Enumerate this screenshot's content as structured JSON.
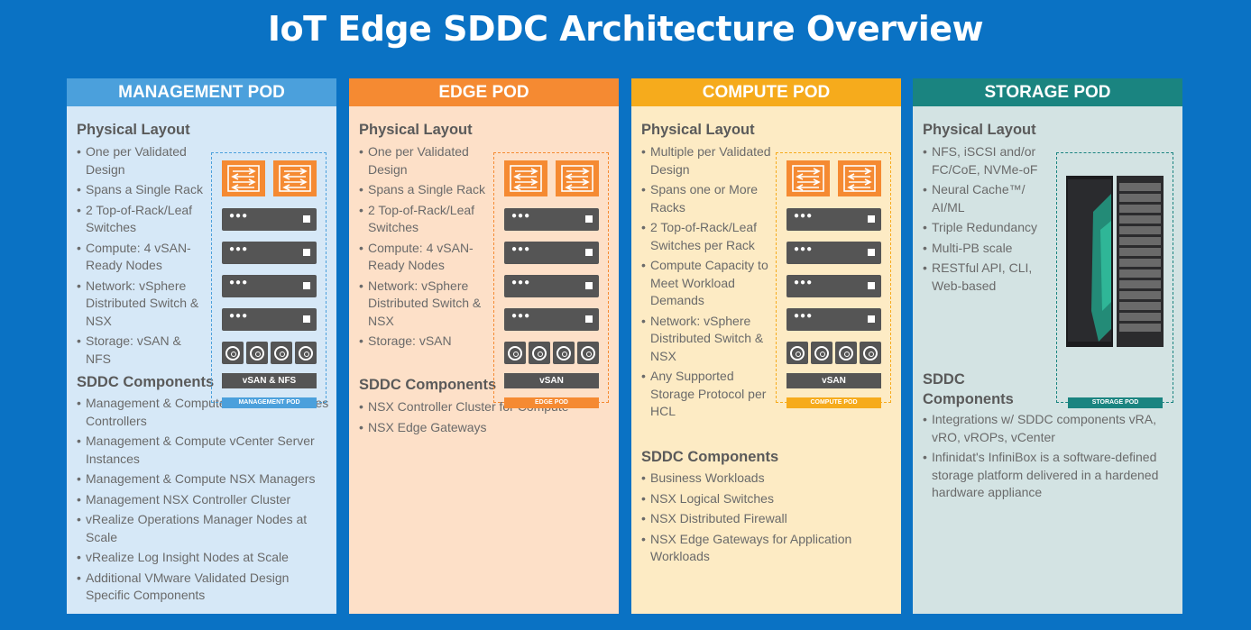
{
  "title": "IoT Edge SDDC Architecture Overview",
  "colors": {
    "background": "#0a72c4",
    "management": "#4ba0dc",
    "edge": "#f58a32",
    "compute": "#f6ab1c",
    "storage": "#1a8480"
  },
  "management": {
    "header": "MANAGEMENT POD",
    "physical_title": "Physical Layout",
    "physical": [
      "One per Validated Design",
      "Spans a Single Rack",
      "2 Top-of-Rack/Leaf Switches",
      "Compute: 4 vSAN-Ready Nodes",
      "Network: vSphere Distributed Switch & NSX",
      "Storage: vSAN & NFS"
    ],
    "sddc_title": "SDDC Components",
    "sddc": [
      "Management & Compute Platform Services Controllers",
      "Management & Compute vCenter Server Instances",
      "Management & Compute NSX Managers",
      "Management NSX Controller Cluster",
      "vRealize Operations Manager Nodes at Scale",
      "vRealize Log Insight Nodes at Scale",
      "Additional VMware Validated Design Specific Components"
    ],
    "rack_storage": "vSAN & NFS",
    "rack_label": "MANAGEMENT POD"
  },
  "edge": {
    "header": "EDGE POD",
    "physical_title": "Physical Layout",
    "physical": [
      "One per Validated Design",
      "Spans a Single Rack",
      "2 Top-of-Rack/Leaf Switches",
      "Compute: 4 vSAN-Ready Nodes",
      "Network: vSphere Distributed Switch & NSX",
      "Storage: vSAN"
    ],
    "sddc_title": "SDDC Components",
    "sddc": [
      "NSX Controller Cluster for Compute",
      "NSX Edge Gateways"
    ],
    "rack_storage": "vSAN",
    "rack_label": "EDGE POD"
  },
  "compute": {
    "header": "COMPUTE POD",
    "physical_title": "Physical Layout",
    "physical": [
      "Multiple per Validated Design",
      "Spans one or More Racks",
      "2 Top-of-Rack/Leaf Switches per Rack",
      "Compute Capacity to Meet Workload Demands",
      "Network: vSphere Distributed Switch & NSX",
      "Any Supported Storage Protocol per HCL"
    ],
    "sddc_title": "SDDC Components",
    "sddc": [
      "Business Workloads",
      "NSX Logical Switches",
      "NSX Distributed Firewall",
      "NSX Edge Gateways for Application Workloads"
    ],
    "rack_storage": "vSAN",
    "rack_label": "COMPUTE POD"
  },
  "storage": {
    "header": "STORAGE POD",
    "physical_title": "Physical Layout",
    "physical": [
      "NFS, iSCSI and/or FC/CoE, NVMe-oF",
      "Neural Cache™/ AI/ML",
      "Triple Redundancy",
      "Multi-PB scale",
      "RESTful API, CLI, Web-based"
    ],
    "sddc_title": "SDDC Components",
    "sddc": [
      "Integrations w/ SDDC components vRA, vRO, vROPs, vCenter",
      "Infinidat's InfiniBox is a software-defined storage platform delivered in a hardened hardware appliance"
    ],
    "rack_label": "STORAGE POD"
  }
}
